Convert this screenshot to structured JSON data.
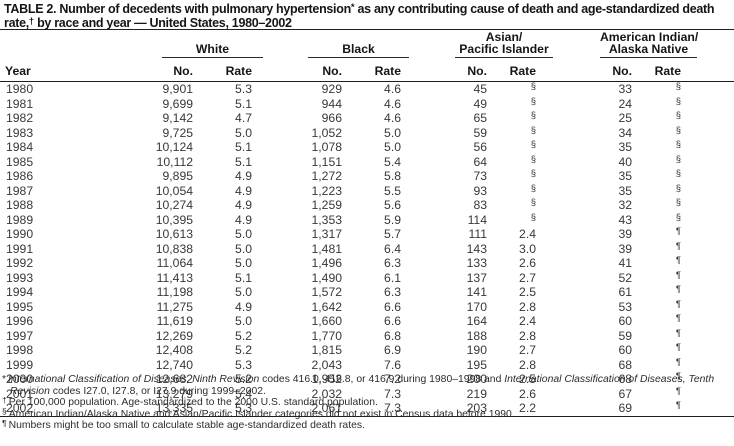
{
  "title": {
    "line1_pre": "TABLE 2. Number of decedents with pulmonary hypertension",
    "line1_sup": "*",
    "line1_post": " as any contributing cause of death and age-standardized death",
    "line2_pre": "rate,",
    "line2_sup": "†",
    "line2_post": " by race and year — United States, 1980–2002"
  },
  "table": {
    "year_label": "Year",
    "groups": [
      {
        "label_lines": [
          "White"
        ],
        "sub": [
          "No.",
          "Rate"
        ]
      },
      {
        "label_lines": [
          "Black"
        ],
        "sub": [
          "No.",
          "Rate"
        ]
      },
      {
        "label_lines": [
          "Asian/",
          "Pacific Islander"
        ],
        "sub": [
          "No.",
          "Rate"
        ]
      },
      {
        "label_lines": [
          "American Indian/",
          "Alaska Native"
        ],
        "sub": [
          "No.",
          "Rate"
        ]
      }
    ],
    "rows": [
      {
        "year": "1980",
        "white_no": "9,901",
        "white_rate": "5.3",
        "black_no": "929",
        "black_rate": "4.6",
        "api_no": "45",
        "api_rate": "§",
        "aian_no": "33",
        "aian_rate": "§"
      },
      {
        "year": "1981",
        "white_no": "9,699",
        "white_rate": "5.1",
        "black_no": "944",
        "black_rate": "4.6",
        "api_no": "49",
        "api_rate": "§",
        "aian_no": "24",
        "aian_rate": "§"
      },
      {
        "year": "1982",
        "white_no": "9,142",
        "white_rate": "4.7",
        "black_no": "966",
        "black_rate": "4.6",
        "api_no": "65",
        "api_rate": "§",
        "aian_no": "25",
        "aian_rate": "§"
      },
      {
        "year": "1983",
        "white_no": "9,725",
        "white_rate": "5.0",
        "black_no": "1,052",
        "black_rate": "5.0",
        "api_no": "59",
        "api_rate": "§",
        "aian_no": "34",
        "aian_rate": "§"
      },
      {
        "year": "1984",
        "white_no": "10,124",
        "white_rate": "5.1",
        "black_no": "1,078",
        "black_rate": "5.0",
        "api_no": "56",
        "api_rate": "§",
        "aian_no": "35",
        "aian_rate": "§"
      },
      {
        "year": "1985",
        "white_no": "10,112",
        "white_rate": "5.1",
        "black_no": "1,151",
        "black_rate": "5.4",
        "api_no": "64",
        "api_rate": "§",
        "aian_no": "40",
        "aian_rate": "§"
      },
      {
        "year": "1986",
        "white_no": "9,895",
        "white_rate": "4.9",
        "black_no": "1,272",
        "black_rate": "5.8",
        "api_no": "73",
        "api_rate": "§",
        "aian_no": "35",
        "aian_rate": "§"
      },
      {
        "year": "1987",
        "white_no": "10,054",
        "white_rate": "4.9",
        "black_no": "1,223",
        "black_rate": "5.5",
        "api_no": "93",
        "api_rate": "§",
        "aian_no": "35",
        "aian_rate": "§"
      },
      {
        "year": "1988",
        "white_no": "10,274",
        "white_rate": "4.9",
        "black_no": "1,259",
        "black_rate": "5.6",
        "api_no": "83",
        "api_rate": "§",
        "aian_no": "32",
        "aian_rate": "§"
      },
      {
        "year": "1989",
        "white_no": "10,395",
        "white_rate": "4.9",
        "black_no": "1,353",
        "black_rate": "5.9",
        "api_no": "114",
        "api_rate": "§",
        "aian_no": "43",
        "aian_rate": "§"
      },
      {
        "year": "1990",
        "white_no": "10,613",
        "white_rate": "5.0",
        "black_no": "1,317",
        "black_rate": "5.7",
        "api_no": "111",
        "api_rate": "2.4",
        "aian_no": "39",
        "aian_rate": "¶"
      },
      {
        "year": "1991",
        "white_no": "10,838",
        "white_rate": "5.0",
        "black_no": "1,481",
        "black_rate": "6.4",
        "api_no": "143",
        "api_rate": "3.0",
        "aian_no": "39",
        "aian_rate": "¶"
      },
      {
        "year": "1992",
        "white_no": "11,064",
        "white_rate": "5.0",
        "black_no": "1,496",
        "black_rate": "6.3",
        "api_no": "133",
        "api_rate": "2.6",
        "aian_no": "41",
        "aian_rate": "¶"
      },
      {
        "year": "1993",
        "white_no": "11,413",
        "white_rate": "5.1",
        "black_no": "1,490",
        "black_rate": "6.1",
        "api_no": "137",
        "api_rate": "2.7",
        "aian_no": "52",
        "aian_rate": "¶"
      },
      {
        "year": "1994",
        "white_no": "11,198",
        "white_rate": "5.0",
        "black_no": "1,572",
        "black_rate": "6.3",
        "api_no": "141",
        "api_rate": "2.5",
        "aian_no": "61",
        "aian_rate": "¶"
      },
      {
        "year": "1995",
        "white_no": "11,275",
        "white_rate": "4.9",
        "black_no": "1,642",
        "black_rate": "6.6",
        "api_no": "170",
        "api_rate": "2.8",
        "aian_no": "53",
        "aian_rate": "¶"
      },
      {
        "year": "1996",
        "white_no": "11,619",
        "white_rate": "5.0",
        "black_no": "1,660",
        "black_rate": "6.6",
        "api_no": "164",
        "api_rate": "2.4",
        "aian_no": "60",
        "aian_rate": "¶"
      },
      {
        "year": "1997",
        "white_no": "12,269",
        "white_rate": "5.2",
        "black_no": "1,770",
        "black_rate": "6.8",
        "api_no": "188",
        "api_rate": "2.8",
        "aian_no": "59",
        "aian_rate": "¶"
      },
      {
        "year": "1998",
        "white_no": "12,408",
        "white_rate": "5.2",
        "black_no": "1,815",
        "black_rate": "6.9",
        "api_no": "190",
        "api_rate": "2.7",
        "aian_no": "60",
        "aian_rate": "¶"
      },
      {
        "year": "1999",
        "white_no": "12,740",
        "white_rate": "5.3",
        "black_no": "2,043",
        "black_rate": "7.6",
        "api_no": "195",
        "api_rate": "2.8",
        "aian_no": "68",
        "aian_rate": "¶"
      },
      {
        "year": "2000",
        "white_no": "12,682",
        "white_rate": "5.2",
        "black_no": "1,952",
        "black_rate": "7.2",
        "api_no": "200",
        "api_rate": "2.5",
        "aian_no": "68",
        "aian_rate": "¶"
      },
      {
        "year": "2001",
        "white_no": "13,279",
        "white_rate": "5.4",
        "black_no": "2,032",
        "black_rate": "7.3",
        "api_no": "219",
        "api_rate": "2.6",
        "aian_no": "67",
        "aian_rate": "¶"
      },
      {
        "year": "2002",
        "white_no": "13,335",
        "white_rate": "5.3",
        "black_no": "2,061",
        "black_rate": "7.3",
        "api_no": "203",
        "api_rate": "2.2",
        "aian_no": "69",
        "aian_rate": "¶"
      }
    ]
  },
  "footnotes": [
    {
      "marker": "*",
      "sup": false,
      "segments": [
        {
          "text": "International Classification of Diseases, Ninth Revision",
          "italic": true
        },
        {
          "text": " codes 416.0, 416.8, or 416.9 during 1980–1998 and ",
          "italic": false
        },
        {
          "text": "International Classification of Diseases, Tenth Revision",
          "italic": true
        },
        {
          "text": " codes I27.0, I27.8, or I27.9 during 1999–2002.",
          "italic": false
        }
      ]
    },
    {
      "marker": "†",
      "sup": true,
      "segments": [
        {
          "text": "Per 100,000 population. Age-standardized to the 2000 U.S. standard population.",
          "italic": false
        }
      ]
    },
    {
      "marker": "§",
      "sup": true,
      "segments": [
        {
          "text": "American Indian/Alaska Native and Asian/Pacific Islander categories did not exist in Census data before 1990.",
          "italic": false
        }
      ]
    },
    {
      "marker": "¶",
      "sup": true,
      "segments": [
        {
          "text": "Numbers might be too small to calculate stable age-standardized death rates.",
          "italic": false
        }
      ]
    }
  ],
  "colors": {
    "background": "#ffffff",
    "heading_text": "#151515",
    "data_text": "#383838",
    "rule": "#1f1f1f"
  }
}
